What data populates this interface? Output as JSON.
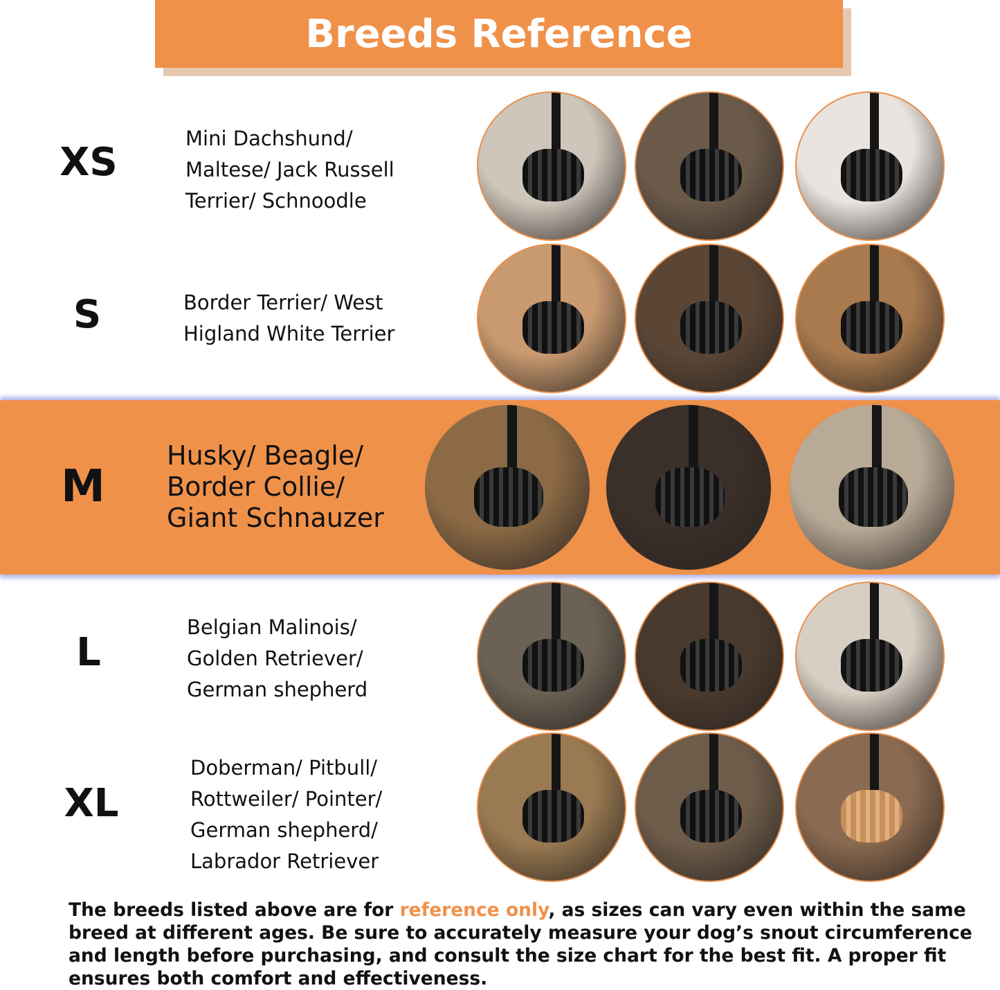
{
  "title": "Breeds Reference",
  "colors": {
    "accent": "#f0914a",
    "band_glow": "#7e88dc",
    "text": "#111111"
  },
  "rows": [
    {
      "size": "XS",
      "breed_lines": [
        "Mini Dachshund/",
        "Maltese/ Jack Russell",
        "Terrier/ Schnoodle"
      ],
      "photos": [
        "dog-wearing-muzzle-photo",
        "dog-wearing-muzzle-photo",
        "dog-wearing-muzzle-photo"
      ]
    },
    {
      "size": "S",
      "breed_lines": [
        "Border Terrier/ West",
        "Higland White Terrier"
      ],
      "photos": [
        "dog-wearing-muzzle-photo",
        "dog-wearing-muzzle-photo",
        "dog-wearing-muzzle-photo"
      ]
    },
    {
      "size": "M",
      "breed_lines": [
        "Husky/ Beagle/",
        "Border Collie/",
        "Giant Schnauzer"
      ],
      "highlighted": true,
      "photos": [
        "dog-wearing-muzzle-photo",
        "dog-wearing-muzzle-photo",
        "dog-wearing-muzzle-photo"
      ]
    },
    {
      "size": "L",
      "breed_lines": [
        "Belgian Malinois/",
        "Golden Retriever/",
        "German shepherd"
      ],
      "photos": [
        "dog-wearing-muzzle-photo",
        "dog-wearing-muzzle-photo",
        "dog-wearing-muzzle-photo"
      ]
    },
    {
      "size": "XL",
      "breed_lines": [
        "Doberman/ Pitbull/",
        "Rottweiler/ Pointer/",
        "German shepherd/",
        "Labrador Retriever"
      ],
      "photos": [
        "dog-wearing-muzzle-photo",
        "dog-wearing-muzzle-photo",
        "dog-wearing-tan-muzzle-photo"
      ]
    }
  ],
  "footer": {
    "line1_pre": "The breeds listed above are for ",
    "line1_highlight": "reference only",
    "line1_post": ", as sizes can vary even within the same",
    "line2": "breed at different ages. Be sure to accurately measure your dog’s snout circumference",
    "line3": "and length before purchasing, and consult the size chart for the best fit. A proper fit",
    "line4": "ensures both comfort and effectiveness."
  }
}
